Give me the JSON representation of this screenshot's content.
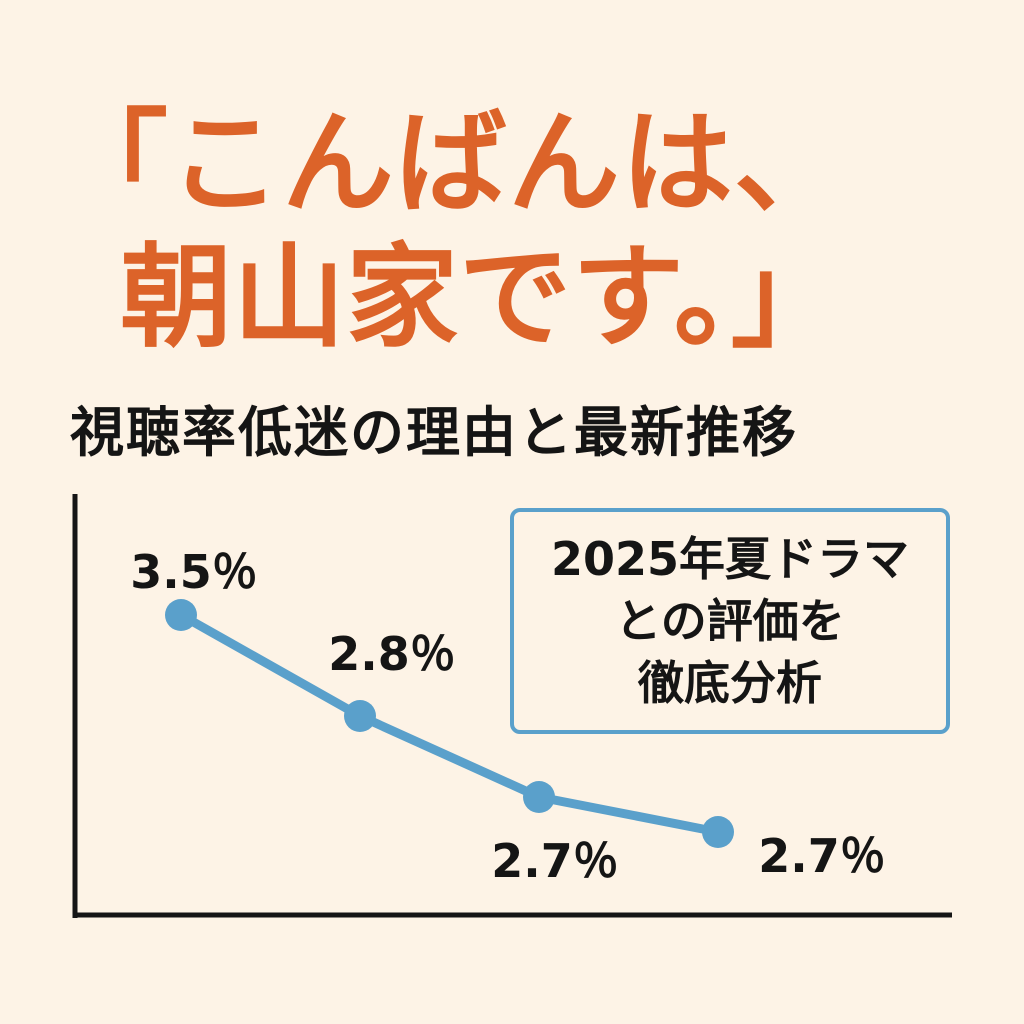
{
  "headline": {
    "line1": "「こんばんは、",
    "line2": "朝山家です。」"
  },
  "subtitle": "視聴率低迷の理由と最新推移",
  "callout": {
    "lines": [
      "2025年夏ドラマ",
      "との評価を",
      "徹底分析"
    ]
  },
  "colors": {
    "headline": "#dc6329",
    "line": "#5aa0cb",
    "text": "#151515",
    "background": "#fdf3e6"
  },
  "chart_data": {
    "type": "line",
    "x": [
      1,
      2,
      3,
      4
    ],
    "values": [
      3.5,
      2.8,
      2.7,
      2.7
    ],
    "data_labels": [
      "3.5％",
      "2.8％",
      "2.7％",
      "2.7％"
    ],
    "title": "",
    "xlabel": "",
    "ylabel": "",
    "grid": false,
    "legend": "none"
  }
}
